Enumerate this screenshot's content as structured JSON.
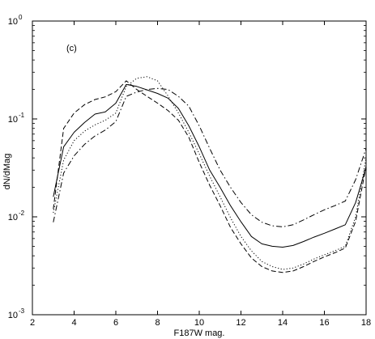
{
  "chart_data": {
    "type": "line",
    "panel_label": "(c)",
    "title": "",
    "xlabel": "F187W mag.",
    "ylabel": "dN/dMag",
    "xlim": [
      2,
      18
    ],
    "ylim": [
      0.001,
      1
    ],
    "yscale": "log",
    "xticks": [
      2,
      4,
      6,
      8,
      10,
      12,
      14,
      16,
      18
    ],
    "xtick_labels": [
      "2",
      "4",
      "6",
      "8",
      "10",
      "12",
      "14",
      "16",
      "18"
    ],
    "yticks": [
      0.001,
      0.01,
      0.1,
      1
    ],
    "ytick_labels": [
      {
        "base": "10",
        "exp": "-3"
      },
      {
        "base": "10",
        "exp": "-2"
      },
      {
        "base": "10",
        "exp": "-1"
      },
      {
        "base": "10",
        "exp": "0"
      }
    ],
    "grid": false,
    "legend": false,
    "series": [
      {
        "style": "solid",
        "x": [
          3.0,
          3.5,
          4.0,
          4.5,
          5.0,
          5.5,
          6.0,
          6.5,
          7.0,
          7.5,
          8.0,
          8.5,
          9.0,
          9.5,
          10.0,
          10.5,
          11.0,
          11.5,
          12.0,
          12.5,
          13.0,
          13.5,
          14.0,
          14.5,
          15.0,
          15.5,
          16.0,
          16.5,
          17.0,
          17.5,
          18.0
        ],
        "y": [
          0.016,
          0.052,
          0.073,
          0.092,
          0.112,
          0.118,
          0.145,
          0.225,
          0.215,
          0.198,
          0.182,
          0.163,
          0.128,
          0.085,
          0.052,
          0.03,
          0.02,
          0.013,
          0.0089,
          0.0063,
          0.0053,
          0.005,
          0.0049,
          0.0051,
          0.0056,
          0.0062,
          0.0068,
          0.0075,
          0.0083,
          0.014,
          0.032
        ]
      },
      {
        "style": "dashed",
        "x": [
          3.0,
          3.5,
          4.0,
          4.5,
          5.0,
          5.5,
          6.0,
          6.5,
          7.0,
          7.5,
          8.0,
          8.5,
          9.0,
          9.5,
          10.0,
          10.5,
          11.0,
          11.5,
          12.0,
          12.5,
          13.0,
          13.5,
          14.0,
          14.5,
          15.0,
          15.5,
          16.0,
          16.5,
          17.0,
          17.5,
          18.0
        ],
        "y": [
          0.012,
          0.08,
          0.115,
          0.14,
          0.158,
          0.168,
          0.19,
          0.245,
          0.2,
          0.17,
          0.145,
          0.122,
          0.097,
          0.065,
          0.036,
          0.021,
          0.013,
          0.0078,
          0.0053,
          0.0038,
          0.0031,
          0.0028,
          0.0027,
          0.0028,
          0.0031,
          0.0035,
          0.0039,
          0.0043,
          0.0048,
          0.009,
          0.033
        ]
      },
      {
        "style": "dotted",
        "x": [
          3.0,
          3.5,
          4.0,
          4.5,
          5.0,
          5.5,
          6.0,
          6.5,
          7.0,
          7.5,
          8.0,
          8.5,
          9.0,
          9.5,
          10.0,
          10.5,
          11.0,
          11.5,
          12.0,
          12.5,
          13.0,
          13.5,
          14.0,
          14.5,
          15.0,
          15.5,
          16.0,
          16.5,
          17.0,
          17.5,
          18.0
        ],
        "y": [
          0.011,
          0.038,
          0.06,
          0.075,
          0.087,
          0.097,
          0.115,
          0.215,
          0.26,
          0.27,
          0.245,
          0.172,
          0.115,
          0.073,
          0.044,
          0.026,
          0.016,
          0.0098,
          0.0063,
          0.0045,
          0.0035,
          0.0031,
          0.0029,
          0.003,
          0.0033,
          0.0037,
          0.0041,
          0.0045,
          0.005,
          0.01,
          0.04
        ]
      },
      {
        "style": "dashdot",
        "x": [
          3.0,
          3.5,
          4.0,
          4.5,
          5.0,
          5.5,
          6.0,
          6.5,
          7.0,
          7.5,
          8.0,
          8.5,
          9.0,
          9.5,
          10.0,
          10.5,
          11.0,
          11.5,
          12.0,
          12.5,
          13.0,
          13.5,
          14.0,
          14.5,
          15.0,
          15.5,
          16.0,
          16.5,
          17.0,
          17.5,
          18.0
        ],
        "y": [
          0.0088,
          0.028,
          0.042,
          0.055,
          0.067,
          0.077,
          0.094,
          0.17,
          0.188,
          0.2,
          0.205,
          0.2,
          0.17,
          0.135,
          0.085,
          0.05,
          0.03,
          0.02,
          0.014,
          0.0105,
          0.0088,
          0.0081,
          0.0079,
          0.0083,
          0.0093,
          0.0105,
          0.0118,
          0.013,
          0.0145,
          0.024,
          0.05
        ]
      }
    ]
  }
}
